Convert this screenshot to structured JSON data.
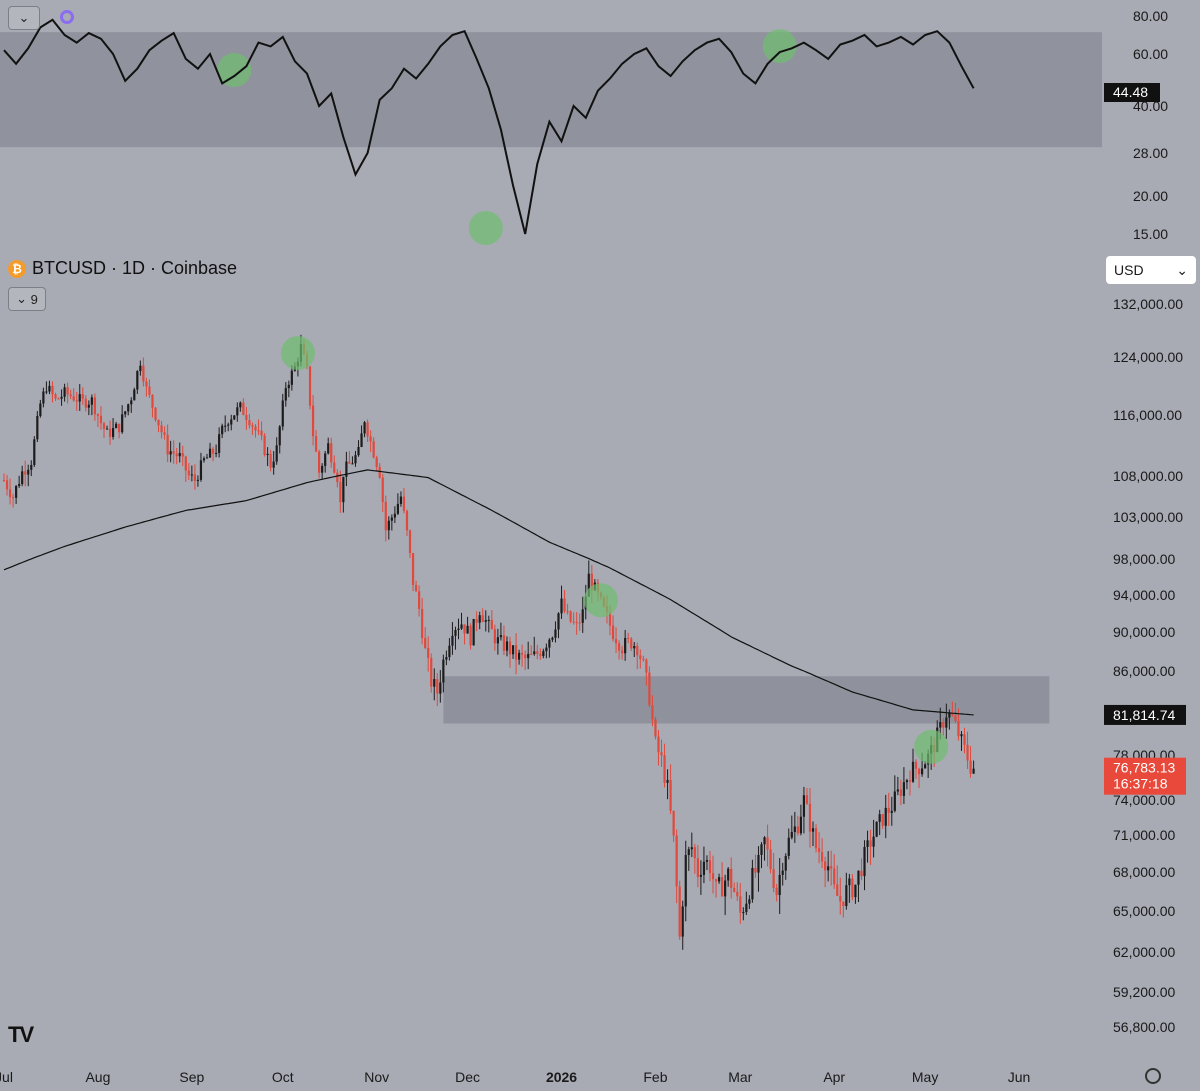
{
  "header": {
    "symbol": "BTCUSD · 1D · Coinbase",
    "collapse_glyph": "⌄",
    "indicator_count": "9",
    "currency": "USD",
    "currency_chevron": "⌄",
    "logo_text": "TV"
  },
  "colors": {
    "background": "#a8aab4",
    "up": "#1c1c1c",
    "down": "#e0493b",
    "band": "#8c8f99",
    "highlight": "#6fbe6f",
    "last_price_bg": "#e8493a"
  },
  "chart_data": [
    {
      "type": "line",
      "title": "",
      "y_ticks": [
        "80.00",
        "60.00",
        "40.00",
        "28.00",
        "20.00",
        "15.00"
      ],
      "current_label": "44.48",
      "band": [
        29.5,
        71.5
      ],
      "x": [
        0,
        4,
        8,
        12,
        16,
        20,
        24,
        28,
        32,
        36,
        40,
        44,
        48,
        52,
        56,
        60,
        64,
        68,
        72,
        76,
        80,
        84,
        88,
        92,
        96,
        100,
        104,
        108,
        112,
        116,
        120,
        124,
        128,
        132,
        136,
        140,
        144,
        148,
        152,
        156,
        160,
        164,
        168,
        172,
        176,
        180,
        184,
        188,
        192,
        196,
        200,
        204,
        208,
        212,
        216,
        220,
        224,
        228,
        232,
        236,
        240,
        244,
        248,
        252,
        256,
        260,
        264,
        268,
        272,
        276,
        280,
        284,
        288,
        292,
        296,
        300,
        304,
        308,
        312,
        316,
        320
      ],
      "values": [
        62,
        56,
        63,
        74,
        78,
        70,
        66,
        71,
        68,
        60,
        49,
        54,
        62,
        67,
        71,
        58,
        54,
        60,
        48,
        51,
        55,
        66,
        64,
        69,
        57,
        52,
        40,
        44,
        32,
        24,
        28,
        42,
        46,
        54,
        50,
        56,
        64,
        70,
        72,
        58,
        46,
        34,
        22,
        14,
        26,
        36,
        31,
        40,
        37,
        45,
        50,
        56,
        60,
        63,
        55,
        51,
        57,
        62,
        66,
        68,
        61,
        52,
        48,
        56,
        61,
        63,
        66,
        62,
        58,
        65,
        67,
        70,
        64,
        66,
        69,
        65,
        70,
        72,
        66,
        55,
        46
      ],
      "circles_x": [
        76,
        159,
        256
      ]
    },
    {
      "type": "candlestick",
      "title": "BTCUSD · 1D · Coinbase",
      "x_ticks": [
        {
          "day": 0,
          "label": "Jul"
        },
        {
          "day": 31,
          "label": "Aug"
        },
        {
          "day": 62,
          "label": "Sep"
        },
        {
          "day": 92,
          "label": "Oct"
        },
        {
          "day": 123,
          "label": "Nov"
        },
        {
          "day": 153,
          "label": "Dec"
        },
        {
          "day": 184,
          "label": "2026"
        },
        {
          "day": 215,
          "label": "Feb"
        },
        {
          "day": 243,
          "label": "Mar"
        },
        {
          "day": 274,
          "label": "Apr"
        },
        {
          "day": 304,
          "label": "May"
        },
        {
          "day": 335,
          "label": "Jun"
        }
      ],
      "y_ticks": [
        132000,
        124000,
        116000,
        108000,
        103000,
        98000,
        94000,
        90000,
        86000,
        78000,
        74000,
        71000,
        68000,
        65000,
        62000,
        59200,
        56800
      ],
      "y_tick_labels": [
        "132,000.00",
        "124,000.00",
        "116,000.00",
        "108,000.00",
        "103,000.00",
        "98,000.00",
        "94,000.00",
        "90,000.00",
        "86,000.00",
        "78,000.00",
        "74,000.00",
        "71,000.00",
        "68,000.00",
        "65,000.00",
        "62,000.00",
        "59,200.00",
        "56,800.00"
      ],
      "ma_label": "81,814.74",
      "last_price_label": "76,783.13",
      "countdown_label": "16:37:18",
      "resistance_zone": [
        81000,
        85500
      ],
      "highlight_days": [
        97,
        197,
        306
      ],
      "close_anchors": [
        [
          0,
          107500
        ],
        [
          3,
          105500
        ],
        [
          6,
          108500
        ],
        [
          9,
          110000
        ],
        [
          12,
          117500
        ],
        [
          14,
          120000
        ],
        [
          17,
          118000
        ],
        [
          20,
          119000
        ],
        [
          23,
          118500
        ],
        [
          26,
          117800
        ],
        [
          29,
          118000
        ],
        [
          32,
          115000
        ],
        [
          34,
          113500
        ],
        [
          38,
          114500
        ],
        [
          42,
          118500
        ],
        [
          45,
          123500
        ],
        [
          47,
          119500
        ],
        [
          51,
          115000
        ],
        [
          54,
          111500
        ],
        [
          58,
          110500
        ],
        [
          61,
          108000
        ],
        [
          63,
          107500
        ],
        [
          66,
          110000
        ],
        [
          70,
          111500
        ],
        [
          72,
          114000
        ],
        [
          74,
          115500
        ],
        [
          78,
          117000
        ],
        [
          81,
          115500
        ],
        [
          85,
          112500
        ],
        [
          88,
          109500
        ],
        [
          90,
          111500
        ],
        [
          93,
          120000
        ],
        [
          96,
          122500
        ],
        [
          98,
          125500
        ],
        [
          100,
          122000
        ],
        [
          102,
          113500
        ],
        [
          104,
          108500
        ],
        [
          107,
          112000
        ],
        [
          110,
          108000
        ],
        [
          111,
          104500
        ],
        [
          112,
          108500
        ],
        [
          115,
          110000
        ],
        [
          117,
          111000
        ],
        [
          119,
          115500
        ],
        [
          121,
          112500
        ],
        [
          124,
          108500
        ],
        [
          126,
          101500
        ],
        [
          128,
          103000
        ],
        [
          131,
          105500
        ],
        [
          133,
          101000
        ],
        [
          135,
          95500
        ],
        [
          137,
          92500
        ],
        [
          139,
          88000
        ],
        [
          141,
          85000
        ],
        [
          143,
          84000
        ],
        [
          145,
          87000
        ],
        [
          148,
          90500
        ],
        [
          151,
          91000
        ],
        [
          154,
          89500
        ],
        [
          157,
          92500
        ],
        [
          160,
          90500
        ],
        [
          163,
          89000
        ],
        [
          166,
          88500
        ],
        [
          169,
          87500
        ],
        [
          172,
          87200
        ],
        [
          175,
          87500
        ],
        [
          178,
          88500
        ],
        [
          181,
          90000
        ],
        [
          184,
          93000
        ],
        [
          186,
          91500
        ],
        [
          189,
          90500
        ],
        [
          191,
          92000
        ],
        [
          193,
          96000
        ],
        [
          195,
          94500
        ],
        [
          197,
          93000
        ],
        [
          199,
          91500
        ],
        [
          201,
          90000
        ],
        [
          204,
          88500
        ],
        [
          207,
          89000
        ],
        [
          209,
          88500
        ],
        [
          211,
          86500
        ],
        [
          213,
          83500
        ],
        [
          215,
          79000
        ],
        [
          217,
          77500
        ],
        [
          219,
          75000
        ],
        [
          221,
          70500
        ],
        [
          223,
          63000
        ],
        [
          225,
          69000
        ],
        [
          227,
          70000
        ],
        [
          229,
          68000
        ],
        [
          231,
          69000
        ],
        [
          233,
          68500
        ],
        [
          235,
          66500
        ],
        [
          237,
          67000
        ],
        [
          239,
          67800
        ],
        [
          241,
          66500
        ],
        [
          243,
          64800
        ],
        [
          245,
          66000
        ],
        [
          247,
          67500
        ],
        [
          249,
          68500
        ],
        [
          251,
          70500
        ],
        [
          253,
          68500
        ],
        [
          255,
          66500
        ],
        [
          257,
          69000
        ],
        [
          259,
          70500
        ],
        [
          262,
          72000
        ],
        [
          264,
          74000
        ],
        [
          266,
          72000
        ],
        [
          268,
          70000
        ],
        [
          270,
          69500
        ],
        [
          272,
          68500
        ],
        [
          274,
          66500
        ],
        [
          276,
          65800
        ],
        [
          278,
          66500
        ],
        [
          281,
          67000
        ],
        [
          283,
          68500
        ],
        [
          286,
          70500
        ],
        [
          288,
          71500
        ],
        [
          290,
          72500
        ],
        [
          293,
          73500
        ],
        [
          296,
          75000
        ],
        [
          299,
          76500
        ],
        [
          302,
          77000
        ],
        [
          305,
          77800
        ],
        [
          307,
          79000
        ],
        [
          309,
          80500
        ],
        [
          311,
          82000
        ],
        [
          313,
          81500
        ],
        [
          315,
          80000
        ],
        [
          317,
          78500
        ],
        [
          319,
          77000
        ],
        [
          320,
          76783
        ]
      ],
      "ma200_anchors": [
        [
          0,
          96800
        ],
        [
          20,
          99500
        ],
        [
          40,
          101800
        ],
        [
          60,
          103800
        ],
        [
          80,
          105000
        ],
        [
          100,
          107200
        ],
        [
          120,
          108800
        ],
        [
          140,
          107800
        ],
        [
          160,
          104000
        ],
        [
          180,
          100000
        ],
        [
          200,
          97000
        ],
        [
          220,
          93500
        ],
        [
          240,
          89500
        ],
        [
          260,
          86500
        ],
        [
          280,
          84000
        ],
        [
          300,
          82300
        ],
        [
          320,
          81815
        ]
      ]
    }
  ]
}
